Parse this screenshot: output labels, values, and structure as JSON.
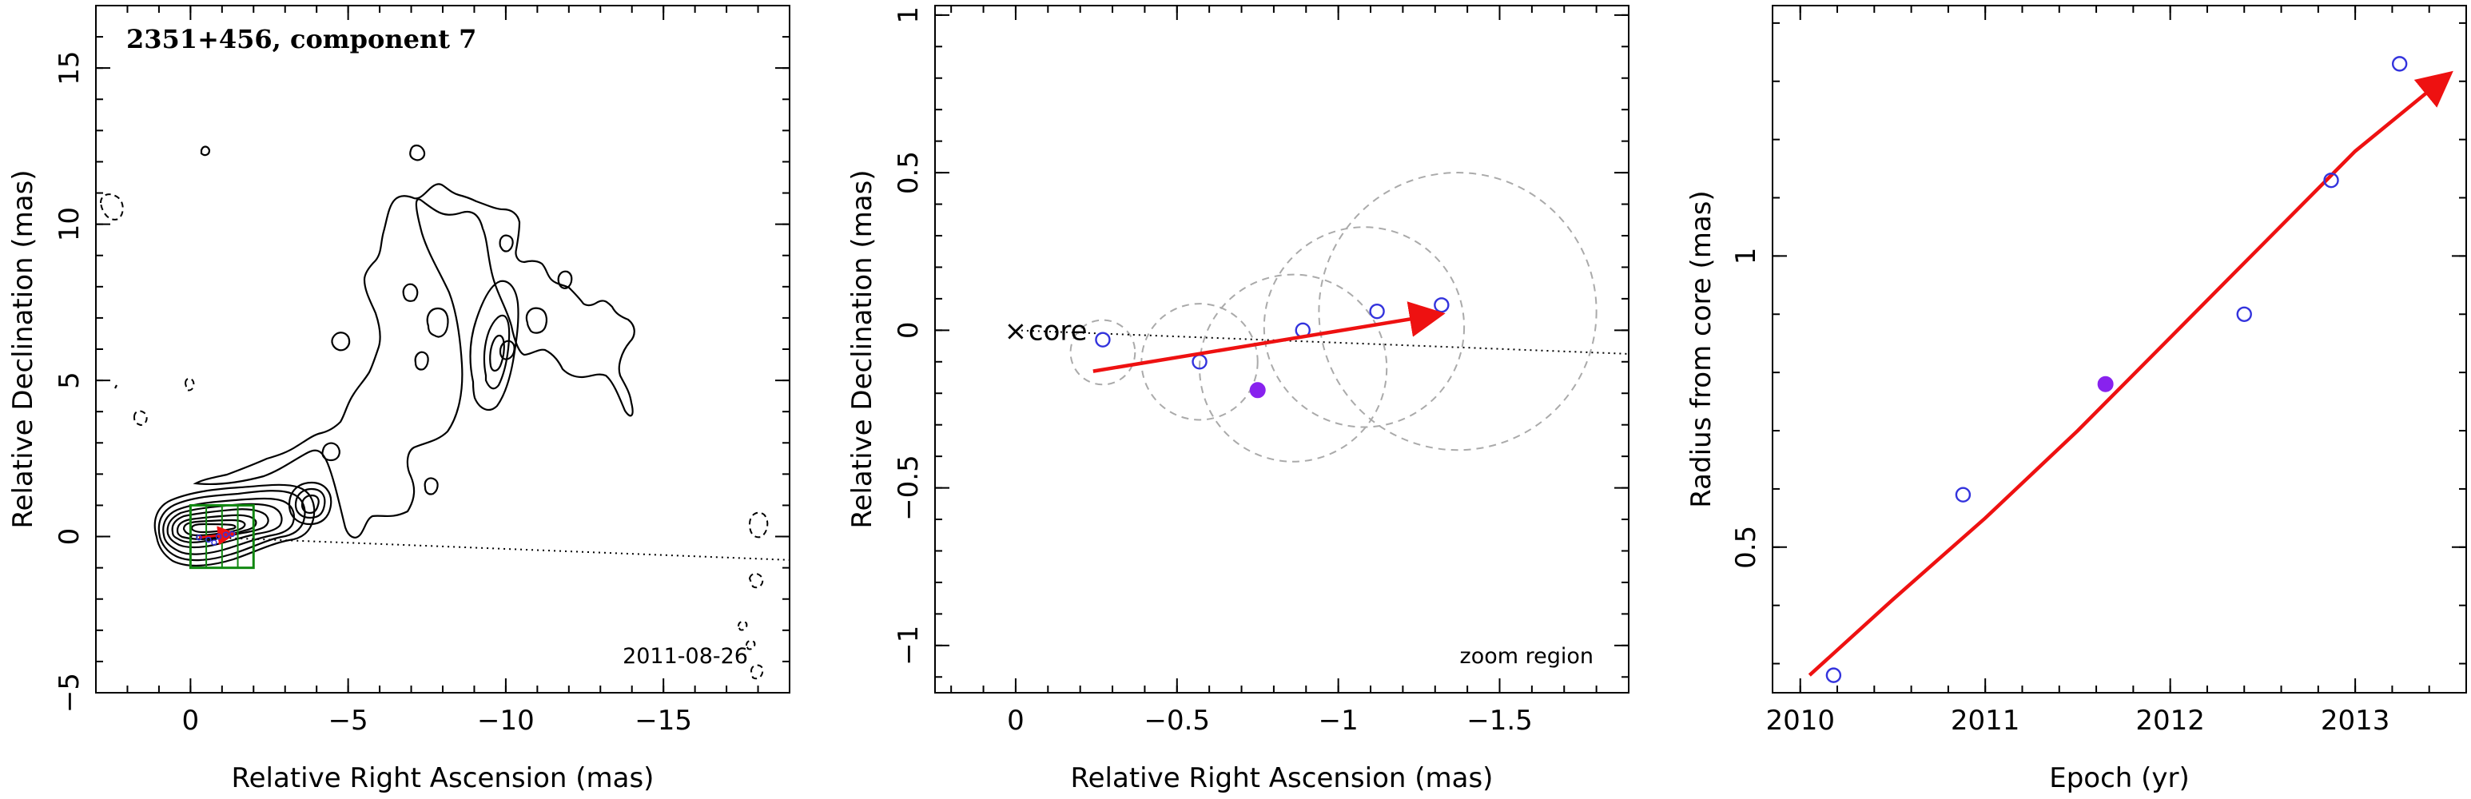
{
  "colors": {
    "arrow": "#ee1111",
    "points": "#3333dd",
    "highlight": "#8822ee",
    "zoom_box": "#118811",
    "fit_circles": "#aaaaaa"
  },
  "panel1": {
    "title": "2351+456, component 7",
    "date": "2011-08-26",
    "xlabel": "Relative Right Ascension (mas)",
    "ylabel": "Relative Declination (mas)"
  },
  "panel2": {
    "core_label": "core",
    "zoom_label": "zoom region",
    "xlabel": "Relative Right Ascension (mas)",
    "ylabel": "Relative Declination (mas)"
  },
  "panel3": {
    "xlabel": "Epoch (yr)",
    "ylabel": "Radius from core (mas)"
  },
  "chart_data": [
    {
      "type": "scatter",
      "description_of_content": "VLBA contour map with component positions",
      "title": "2351+456, component 7",
      "xlabel": "Relative Right Ascension (mas)",
      "ylabel": "Relative Declination (mas)",
      "xlim": [
        3,
        -19
      ],
      "ylim": [
        -5,
        17
      ],
      "x_ticks": [
        0,
        -5,
        -10,
        -15
      ],
      "x_tick_labels": [
        "0",
        "−5",
        "−10",
        "−15"
      ],
      "y_ticks": [
        -5,
        0,
        5,
        10,
        15
      ],
      "y_tick_labels": [
        "−5",
        "0",
        "5",
        "10",
        "15"
      ],
      "annotation": "2011-08-26",
      "zoom_box": {
        "x": [
          0,
          -2
        ],
        "y": [
          -1,
          1
        ]
      },
      "positions": {
        "x": [
          -0.27,
          -0.57,
          -0.75,
          -0.89,
          -1.12,
          -1.32
        ],
        "y": [
          -0.03,
          -0.1,
          -0.19,
          0.0,
          0.06,
          0.08
        ]
      },
      "trajectory_line": {
        "x": [
          0,
          -19
        ],
        "y": [
          0,
          -0.75
        ]
      }
    },
    {
      "type": "scatter",
      "description_of_content": "zoom region",
      "xlabel": "Relative Right Ascension (mas)",
      "ylabel": "Relative Declination (mas)",
      "xlim": [
        0.25,
        -1.9
      ],
      "ylim": [
        -1.15,
        1.03
      ],
      "x_ticks": [
        0,
        -0.5,
        -1,
        -1.5
      ],
      "x_tick_labels": [
        "0",
        "−0.5",
        "−1",
        "−1.5"
      ],
      "y_ticks": [
        -1,
        -0.5,
        0,
        0.5,
        1
      ],
      "y_tick_labels": [
        "−1",
        "−0.5",
        "0",
        "0.5",
        "1"
      ],
      "core": {
        "x": 0,
        "y": 0,
        "label": "core"
      },
      "annotation": "zoom region",
      "series": [
        {
          "style": "open",
          "x": [
            -0.27,
            -0.57,
            -0.89,
            -1.12,
            -1.32
          ],
          "y": [
            -0.03,
            -0.1,
            0.0,
            0.06,
            0.08
          ]
        },
        {
          "style": "filled",
          "x": [
            -0.75
          ],
          "y": [
            -0.19
          ]
        }
      ],
      "fit_circles": [
        {
          "x": -0.27,
          "y": -0.07,
          "r": 0.1
        },
        {
          "x": -0.57,
          "y": -0.1,
          "r": 0.18
        },
        {
          "x": -0.86,
          "y": -0.12,
          "r": 0.29
        },
        {
          "x": -1.08,
          "y": 0.01,
          "r": 0.31
        },
        {
          "x": -1.37,
          "y": 0.06,
          "r": 0.43
        }
      ],
      "vector_fit": {
        "x": [
          -0.24,
          -1.31
        ],
        "y": [
          -0.13,
          0.05
        ]
      },
      "trajectory_line": {
        "x": [
          0,
          -1.9
        ],
        "y": [
          0,
          -0.075
        ]
      }
    },
    {
      "type": "scatter",
      "xlabel": "Epoch (yr)",
      "ylabel": "Radius from core (mas)",
      "xlim": [
        2009.85,
        2013.6
      ],
      "ylim": [
        0.25,
        1.43
      ],
      "x_ticks": [
        2010,
        2011,
        2012,
        2013
      ],
      "x_tick_labels": [
        "2010",
        "2011",
        "2012",
        "2013"
      ],
      "y_ticks": [
        0.5,
        1
      ],
      "y_tick_labels": [
        "0.5",
        "1"
      ],
      "series": [
        {
          "style": "open",
          "x": [
            2010.18,
            2010.88,
            2012.4,
            2012.87,
            2013.24
          ],
          "y": [
            0.28,
            0.59,
            0.9,
            1.13,
            1.33
          ]
        },
        {
          "style": "filled",
          "x": [
            2011.65
          ],
          "y": [
            0.78
          ]
        }
      ],
      "fit_curve": {
        "x": [
          2010.05,
          2010.5,
          2011.0,
          2011.5,
          2012.0,
          2012.5,
          2013.0,
          2013.5
        ],
        "y": [
          0.28,
          0.41,
          0.55,
          0.7,
          0.86,
          1.02,
          1.18,
          1.31
        ]
      }
    }
  ]
}
